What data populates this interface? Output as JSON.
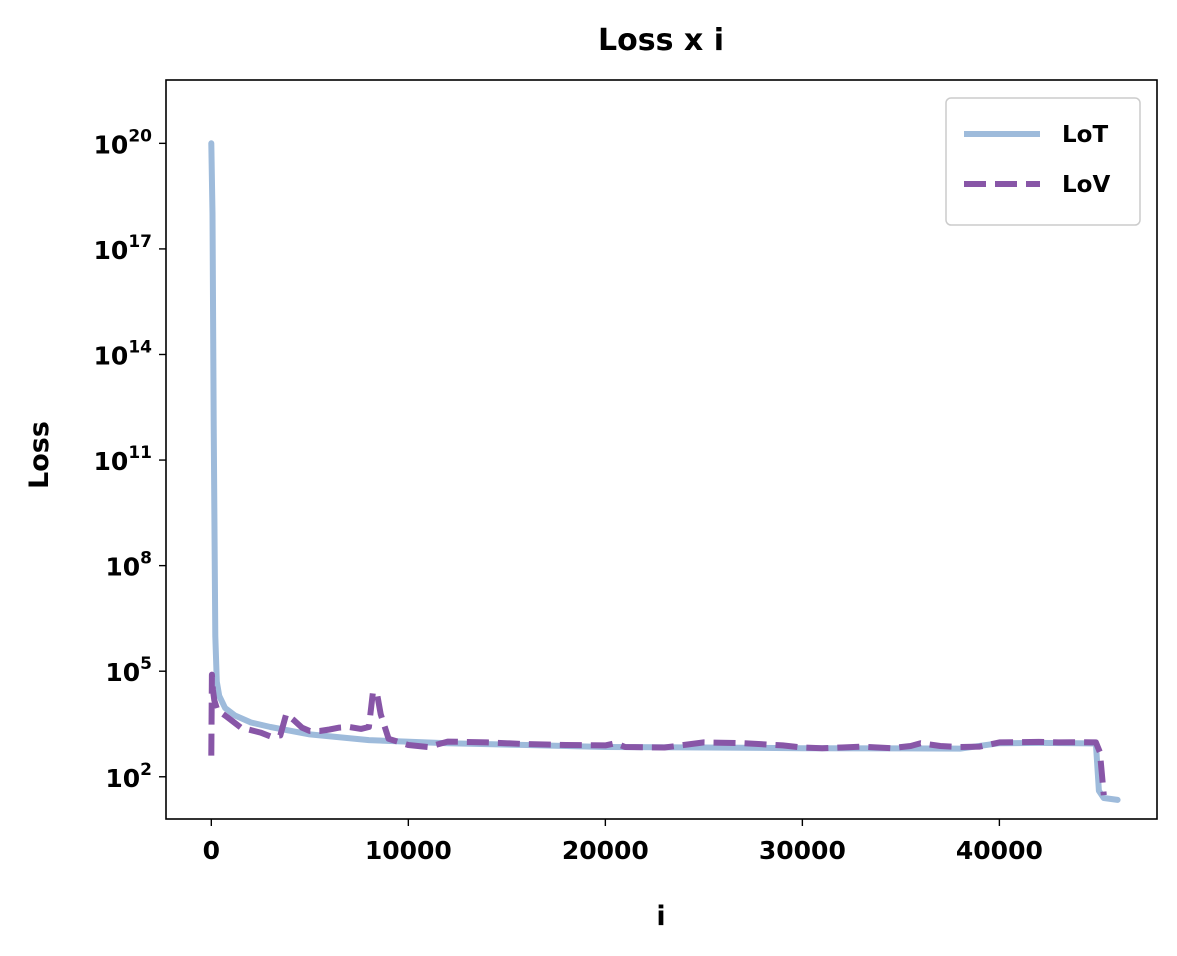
{
  "chart_data": {
    "type": "line",
    "title": "Loss x i",
    "xlabel": "i",
    "ylabel": "Loss",
    "xscale": "linear",
    "yscale": "log",
    "xlim": [
      -2300,
      48000
    ],
    "ylim_log10": [
      0.8,
      21.8
    ],
    "xticks": [
      0,
      10000,
      20000,
      30000,
      40000
    ],
    "xtick_labels": [
      "0",
      "10000",
      "20000",
      "30000",
      "40000"
    ],
    "yticks": [
      {
        "base": "10",
        "exp": "20",
        "value": 1e+20
      },
      {
        "base": "10",
        "exp": "17",
        "value": 1e+17
      },
      {
        "base": "10",
        "exp": "14",
        "value": 100000000000000.0
      },
      {
        "base": "10",
        "exp": "11",
        "value": 100000000000.0
      },
      {
        "base": "10",
        "exp": "8",
        "value": 100000000.0
      },
      {
        "base": "10",
        "exp": "5",
        "value": 100000.0
      },
      {
        "base": "10",
        "exp": "2",
        "value": 100.0
      }
    ],
    "legend_position": "top-right",
    "series": [
      {
        "name": "LoT",
        "color": "#9ebbdb",
        "style": "solid",
        "points": [
          [
            0,
            1e+20
          ],
          [
            60,
            1e+18
          ],
          [
            120,
            1000000000000.0
          ],
          [
            200,
            1000000.0
          ],
          [
            280,
            50000.0
          ],
          [
            400,
            20000.0
          ],
          [
            700,
            9000
          ],
          [
            1200,
            5500
          ],
          [
            2000,
            3500
          ],
          [
            3000,
            2600
          ],
          [
            5000,
            1600
          ],
          [
            8000,
            1100
          ],
          [
            12000,
            900
          ],
          [
            16000,
            800
          ],
          [
            20000,
            700
          ],
          [
            25000,
            680
          ],
          [
            30000,
            650
          ],
          [
            35000,
            640
          ],
          [
            38000,
            630
          ],
          [
            40000,
            900
          ],
          [
            42000,
            920
          ],
          [
            44000,
            900
          ],
          [
            44900,
            880
          ],
          [
            45050,
            40
          ],
          [
            45300,
            25
          ],
          [
            46000,
            22
          ]
        ]
      },
      {
        "name": "LoV",
        "color": "#8856a7",
        "style": "dashed",
        "points": [
          [
            0,
            400
          ],
          [
            30,
            80000.0
          ],
          [
            80,
            30000.0
          ],
          [
            150,
            15000
          ],
          [
            300,
            8000
          ],
          [
            800,
            5000
          ],
          [
            1500,
            2500
          ],
          [
            2500,
            1800
          ],
          [
            3000,
            1400
          ],
          [
            3500,
            1500
          ],
          [
            3800,
            6000
          ],
          [
            4200,
            4000
          ],
          [
            4600,
            2500
          ],
          [
            5000,
            2000
          ],
          [
            5500,
            2000
          ],
          [
            6000,
            2200
          ],
          [
            6500,
            2500
          ],
          [
            7000,
            2600
          ],
          [
            7600,
            2300
          ],
          [
            8000,
            2600
          ],
          [
            8200,
            25000
          ],
          [
            8400,
            25000
          ],
          [
            8600,
            6000
          ],
          [
            9000,
            1200
          ],
          [
            10000,
            800
          ],
          [
            11000,
            700
          ],
          [
            12000,
            1000
          ],
          [
            14000,
            950
          ],
          [
            16000,
            850
          ],
          [
            18000,
            800
          ],
          [
            20000,
            780
          ],
          [
            20500,
            900
          ],
          [
            21000,
            700
          ],
          [
            23000,
            680
          ],
          [
            25000,
            950
          ],
          [
            27000,
            900
          ],
          [
            29000,
            780
          ],
          [
            30000,
            680
          ],
          [
            31000,
            650
          ],
          [
            32000,
            680
          ],
          [
            33000,
            720
          ],
          [
            34500,
            650
          ],
          [
            35500,
            750
          ],
          [
            36000,
            900
          ],
          [
            37000,
            750
          ],
          [
            38000,
            700
          ],
          [
            39000,
            720
          ],
          [
            40000,
            950
          ],
          [
            42000,
            980
          ],
          [
            43000,
            950
          ],
          [
            44000,
            960
          ],
          [
            44900,
            950
          ],
          [
            45100,
            500
          ],
          [
            45300,
            30
          ]
        ]
      }
    ]
  }
}
